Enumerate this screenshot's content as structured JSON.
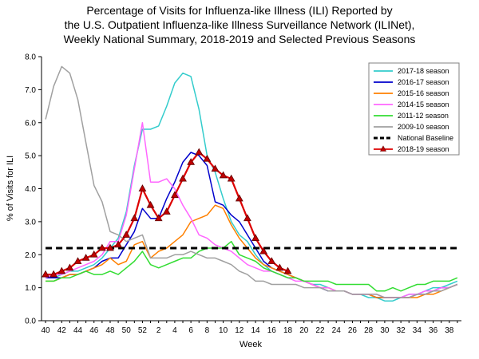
{
  "chart_data": {
    "type": "line",
    "title": [
      "Percentage of Visits for Influenza-like Illness (ILI) Reported by",
      "the U.S. Outpatient Influenza-like Illness Surveillance Network (ILINet),",
      "Weekly National Summary, 2018-2019 and Selected Previous Seasons"
    ],
    "xlabel": "Week",
    "ylabel": "% of Visits for ILI",
    "ylim": [
      0,
      8
    ],
    "yticks": [
      "0.0",
      "1.0",
      "2.0",
      "3.0",
      "4.0",
      "5.0",
      "6.0",
      "7.0",
      "8.0"
    ],
    "weeks": [
      40,
      41,
      42,
      43,
      44,
      45,
      46,
      47,
      48,
      49,
      50,
      51,
      52,
      1,
      2,
      3,
      4,
      5,
      6,
      7,
      8,
      9,
      10,
      11,
      12,
      13,
      14,
      15,
      16,
      17,
      18,
      19,
      20,
      21,
      22,
      23,
      24,
      25,
      26,
      27,
      28,
      29,
      30,
      31,
      32,
      33,
      34,
      35,
      36,
      37,
      38,
      39
    ],
    "xtick_labels": [
      "40",
      "42",
      "44",
      "46",
      "48",
      "50",
      "52",
      "2",
      "4",
      "6",
      "8",
      "10",
      "12",
      "14",
      "16",
      "18",
      "20",
      "22",
      "24",
      "26",
      "28",
      "30",
      "32",
      "34",
      "36",
      "38"
    ],
    "legend_position": "top-right",
    "series": [
      {
        "name": "2017-18 season",
        "color": "#33CCCC",
        "marker": false,
        "values": [
          1.3,
          1.3,
          1.4,
          1.5,
          1.5,
          1.6,
          1.7,
          1.9,
          2.2,
          2.5,
          3.3,
          4.7,
          5.8,
          5.8,
          5.9,
          6.5,
          7.2,
          7.5,
          7.4,
          6.4,
          5.0,
          4.5,
          3.7,
          3.0,
          2.6,
          2.4,
          2.0,
          1.7,
          1.5,
          1.4,
          1.3,
          1.3,
          1.2,
          1.1,
          1.1,
          1.0,
          0.9,
          0.9,
          0.8,
          0.8,
          0.7,
          0.7,
          0.6,
          0.6,
          0.7,
          0.8,
          0.8,
          0.9,
          1.0,
          1.0,
          1.1,
          1.2
        ]
      },
      {
        "name": "2016-17 season",
        "color": "#0000CC",
        "marker": false,
        "values": [
          1.3,
          1.3,
          1.3,
          1.4,
          1.4,
          1.5,
          1.6,
          1.8,
          1.9,
          1.9,
          2.3,
          2.7,
          3.4,
          3.1,
          3.1,
          3.7,
          4.2,
          4.8,
          5.1,
          5.0,
          4.7,
          3.6,
          3.5,
          3.2,
          3.0,
          2.6,
          2.2,
          1.8,
          1.6,
          1.5,
          1.4,
          1.3,
          1.2,
          1.1,
          1.0,
          0.9,
          0.9,
          0.9,
          0.8,
          0.8,
          0.8,
          0.7,
          0.7,
          0.7,
          0.7,
          0.7,
          0.8,
          0.8,
          0.9,
          1.0,
          1.0,
          1.1
        ]
      },
      {
        "name": "2015-16 season",
        "color": "#FF8000",
        "marker": false,
        "values": [
          1.2,
          1.2,
          1.3,
          1.4,
          1.4,
          1.5,
          1.6,
          1.7,
          1.9,
          1.7,
          1.8,
          2.3,
          2.4,
          1.9,
          2.1,
          2.2,
          2.4,
          2.6,
          3.0,
          3.1,
          3.2,
          3.5,
          3.4,
          2.9,
          2.5,
          2.2,
          1.9,
          1.7,
          1.6,
          1.5,
          1.4,
          1.3,
          1.2,
          1.1,
          1.0,
          1.0,
          0.9,
          0.9,
          0.8,
          0.8,
          0.8,
          0.7,
          0.7,
          0.7,
          0.7,
          0.7,
          0.7,
          0.8,
          0.8,
          0.9,
          1.0,
          1.1
        ]
      },
      {
        "name": "2014-15 season",
        "color": "#FF66FF",
        "marker": false,
        "values": [
          1.3,
          1.4,
          1.4,
          1.5,
          1.6,
          1.7,
          1.8,
          2.0,
          2.4,
          2.4,
          3.2,
          4.6,
          6.0,
          4.2,
          4.2,
          4.3,
          4.0,
          3.5,
          3.1,
          2.6,
          2.5,
          2.3,
          2.2,
          2.1,
          1.9,
          1.7,
          1.6,
          1.5,
          1.5,
          1.4,
          1.3,
          1.2,
          1.2,
          1.1,
          1.0,
          1.0,
          0.9,
          0.9,
          0.8,
          0.8,
          0.8,
          0.8,
          0.7,
          0.7,
          0.7,
          0.8,
          0.8,
          0.9,
          0.9,
          1.0,
          1.0,
          1.1
        ]
      },
      {
        "name": "2011-12 season",
        "color": "#33DD33",
        "marker": false,
        "values": [
          1.2,
          1.2,
          1.3,
          1.3,
          1.4,
          1.5,
          1.4,
          1.4,
          1.5,
          1.4,
          1.6,
          1.8,
          2.1,
          1.7,
          1.6,
          1.7,
          1.8,
          1.9,
          1.9,
          2.1,
          2.2,
          2.2,
          2.2,
          2.4,
          2.0,
          1.9,
          1.8,
          1.6,
          1.5,
          1.4,
          1.3,
          1.3,
          1.2,
          1.2,
          1.2,
          1.2,
          1.1,
          1.1,
          1.1,
          1.1,
          1.1,
          0.9,
          0.9,
          1.0,
          0.9,
          1.0,
          1.1,
          1.1,
          1.2,
          1.2,
          1.2,
          1.3
        ]
      },
      {
        "name": "2009-10 season",
        "color": "#A0A0A0",
        "marker": false,
        "values": [
          6.1,
          7.1,
          7.7,
          7.5,
          6.7,
          5.4,
          4.1,
          3.6,
          2.7,
          2.6,
          2.4,
          2.5,
          2.6,
          1.9,
          1.9,
          1.9,
          2.0,
          2.0,
          2.1,
          2.0,
          1.9,
          1.9,
          1.8,
          1.7,
          1.5,
          1.4,
          1.2,
          1.2,
          1.1,
          1.1,
          1.1,
          1.1,
          1.0,
          1.0,
          1.0,
          0.9,
          0.9,
          0.9,
          0.8,
          0.8,
          0.8,
          0.8,
          0.7,
          0.7,
          0.7,
          0.7,
          0.8,
          0.8,
          0.9,
          0.9,
          1.0,
          1.1
        ]
      },
      {
        "name": "National Baseline",
        "color": "#000000",
        "marker": false,
        "dashed": true,
        "values": [
          2.2,
          2.2,
          2.2,
          2.2,
          2.2,
          2.2,
          2.2,
          2.2,
          2.2,
          2.2,
          2.2,
          2.2,
          2.2,
          2.2,
          2.2,
          2.2,
          2.2,
          2.2,
          2.2,
          2.2,
          2.2,
          2.2,
          2.2,
          2.2,
          2.2,
          2.2,
          2.2,
          2.2,
          2.2,
          2.2,
          2.2,
          2.2,
          2.2,
          2.2,
          2.2,
          2.2,
          2.2,
          2.2,
          2.2,
          2.2,
          2.2,
          2.2,
          2.2,
          2.2,
          2.2,
          2.2,
          2.2,
          2.2,
          2.2,
          2.2,
          2.2,
          2.2
        ]
      },
      {
        "name": "2018-19 season",
        "color": "#DD0000",
        "marker": true,
        "values": [
          1.4,
          1.4,
          1.5,
          1.6,
          1.8,
          1.9,
          2.0,
          2.2,
          2.2,
          2.3,
          2.6,
          3.1,
          4.0,
          3.5,
          3.1,
          3.3,
          3.8,
          4.3,
          4.8,
          5.1,
          4.9,
          4.6,
          4.4,
          4.3,
          3.7,
          3.1,
          2.5,
          2.1,
          1.8,
          1.6,
          1.5
        ]
      }
    ]
  }
}
